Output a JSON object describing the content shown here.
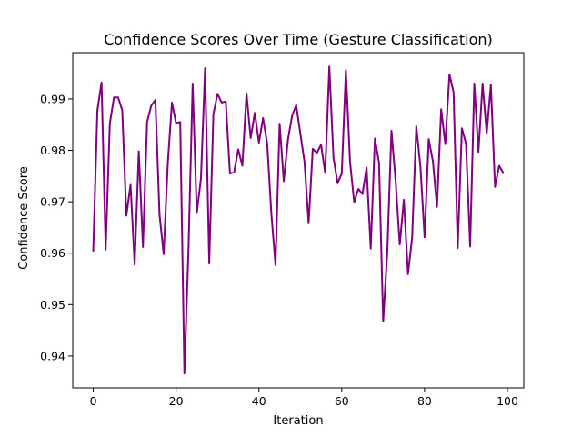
{
  "chart_data": {
    "type": "line",
    "title": "Confidence Scores Over Time (Gesture Classification)",
    "xlabel": "Iteration",
    "ylabel": "Confidence Score",
    "xlim": [
      -4.95,
      103.95
    ],
    "ylim": [
      0.9338,
      0.999
    ],
    "x_ticks": [
      0,
      20,
      40,
      60,
      80,
      100
    ],
    "x_tick_labels": [
      "0",
      "20",
      "40",
      "60",
      "80",
      "100"
    ],
    "y_ticks": [
      0.94,
      0.95,
      0.96,
      0.97,
      0.98,
      0.99
    ],
    "y_tick_labels": [
      "0.94",
      "0.95",
      "0.96",
      "0.97",
      "0.98",
      "0.99"
    ],
    "grid": false,
    "legend": "none",
    "series": [
      {
        "color": "#800080",
        "x": [
          0,
          1,
          2,
          3,
          4,
          5,
          6,
          7,
          8,
          9,
          10,
          11,
          12,
          13,
          14,
          15,
          16,
          17,
          18,
          19,
          20,
          21,
          22,
          23,
          24,
          25,
          26,
          27,
          28,
          29,
          30,
          31,
          32,
          33,
          34,
          35,
          36,
          37,
          38,
          39,
          40,
          41,
          42,
          43,
          44,
          45,
          46,
          47,
          48,
          49,
          50,
          51,
          52,
          53,
          54,
          55,
          56,
          57,
          58,
          59,
          60,
          61,
          62,
          63,
          64,
          65,
          66,
          67,
          68,
          69,
          70,
          71,
          72,
          73,
          74,
          75,
          76,
          77,
          78,
          79,
          80,
          81,
          82,
          83,
          84,
          85,
          86,
          87,
          88,
          89,
          90,
          91,
          92,
          93,
          94,
          95,
          96,
          97,
          98,
          99
        ],
        "y": [
          0.9605,
          0.9878,
          0.9932,
          0.9607,
          0.9852,
          0.9903,
          0.9903,
          0.9878,
          0.9673,
          0.9733,
          0.9578,
          0.9798,
          0.9612,
          0.9855,
          0.9887,
          0.9898,
          0.9675,
          0.9598,
          0.9775,
          0.9893,
          0.9853,
          0.9855,
          0.9366,
          0.9608,
          0.993,
          0.9678,
          0.9745,
          0.996,
          0.958,
          0.987,
          0.991,
          0.9893,
          0.9895,
          0.9755,
          0.9757,
          0.9802,
          0.977,
          0.9911,
          0.9824,
          0.9873,
          0.9815,
          0.9863,
          0.9813,
          0.9677,
          0.9577,
          0.9852,
          0.974,
          0.982,
          0.9867,
          0.9888,
          0.9833,
          0.9778,
          0.9658,
          0.9803,
          0.9795,
          0.9811,
          0.9756,
          0.9963,
          0.9786,
          0.9736,
          0.9755,
          0.9956,
          0.9778,
          0.9699,
          0.9725,
          0.9715,
          0.9766,
          0.9609,
          0.9823,
          0.9776,
          0.9467,
          0.9602,
          0.9838,
          0.9742,
          0.9617,
          0.9704,
          0.9559,
          0.9631,
          0.9847,
          0.9768,
          0.9631,
          0.9822,
          0.9779,
          0.969,
          0.988,
          0.9812,
          0.9948,
          0.9913,
          0.961,
          0.9843,
          0.9813,
          0.9613,
          0.993,
          0.9797,
          0.993,
          0.9833,
          0.9928,
          0.9729,
          0.977,
          0.9756
        ]
      }
    ]
  }
}
